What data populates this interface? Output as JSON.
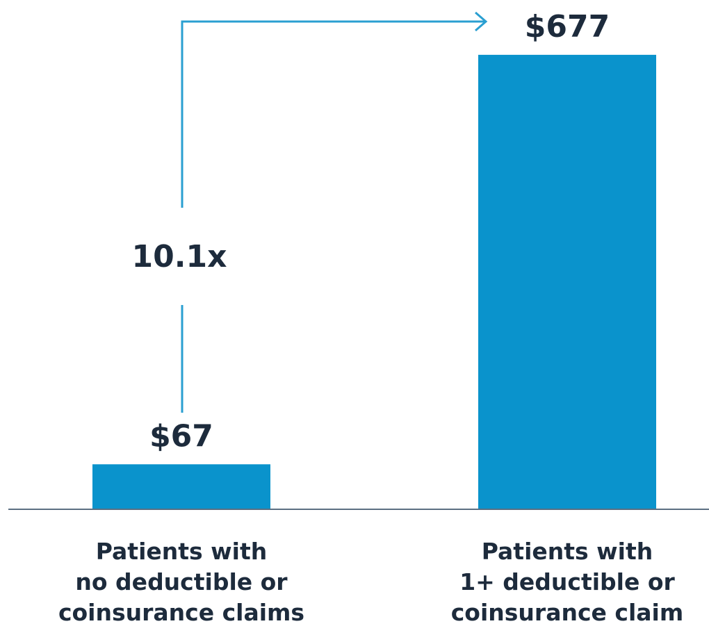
{
  "chart_data": {
    "type": "bar",
    "categories": [
      [
        "Patients with",
        "no deductible or",
        "coinsurance claims"
      ],
      [
        "Patients with",
        "1+ deductible or",
        "coinsurance claim"
      ]
    ],
    "values": [
      67,
      677
    ],
    "value_labels": [
      "$67",
      "$677"
    ],
    "annotation": "10.1x",
    "title": "",
    "xlabel": "",
    "ylabel": "",
    "ylim": [
      0,
      680
    ],
    "grid": false,
    "legend": "none"
  },
  "colors": {
    "bar": "#0a93cc",
    "axis": "#5b6f82",
    "connector": "#2a9fd1",
    "text": "#1d2b3c"
  }
}
